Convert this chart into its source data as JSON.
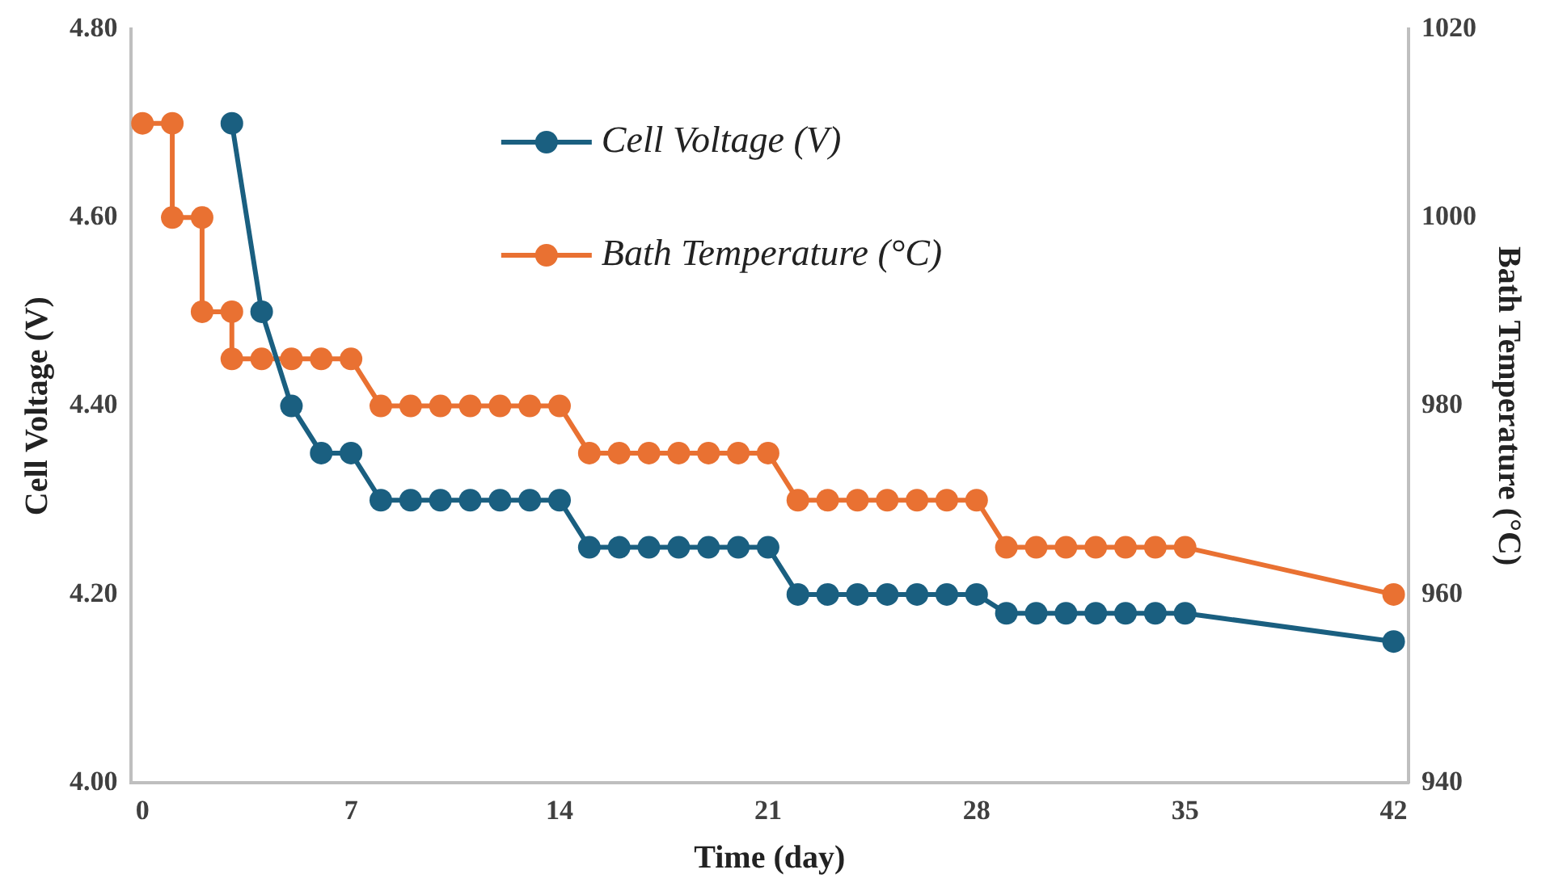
{
  "chart_data": {
    "type": "line",
    "xlabel": "Time (day)",
    "ylabel": "Cell Voltage (V)",
    "y2label": "Bath Temperature (°C)",
    "xlim": [
      -0.4,
      42.5
    ],
    "xticks": [
      0,
      7,
      14,
      21,
      28,
      35,
      42
    ],
    "ylim": [
      4.0,
      4.8
    ],
    "yticks": [
      {
        "value": 4.0,
        "label": "4.00"
      },
      {
        "value": 4.2,
        "label": "4.20"
      },
      {
        "value": 4.4,
        "label": "4.40"
      },
      {
        "value": 4.6,
        "label": "4.60"
      },
      {
        "value": 4.8,
        "label": "4.80"
      }
    ],
    "y2lim": [
      940,
      1020
    ],
    "y2ticks": [
      940,
      960,
      980,
      1000,
      1020
    ],
    "grid": false,
    "legend": "top",
    "marker": "circle",
    "line_style": "solid",
    "series": [
      {
        "name": "Cell Voltage (V)",
        "color": "#1a5f80",
        "x": [
          3,
          4,
          5,
          6,
          7,
          8,
          9,
          10,
          11,
          12,
          13,
          14,
          15,
          16,
          17,
          18,
          19,
          20,
          21,
          22,
          23,
          24,
          25,
          26,
          27,
          28,
          29,
          30,
          31,
          32,
          33,
          34,
          35,
          42
        ],
        "values": [
          4.7,
          4.5,
          4.4,
          4.35,
          4.35,
          4.3,
          4.3,
          4.3,
          4.3,
          4.3,
          4.3,
          4.3,
          4.25,
          4.25,
          4.25,
          4.25,
          4.25,
          4.25,
          4.25,
          4.2,
          4.2,
          4.2,
          4.2,
          4.2,
          4.2,
          4.2,
          4.18,
          4.18,
          4.18,
          4.18,
          4.18,
          4.18,
          4.18,
          4.15
        ]
      },
      {
        "name": "Bath Temperature (°C)",
        "color": "#e97132",
        "axis": "y2",
        "x": [
          0,
          1,
          1,
          2,
          2,
          3,
          3,
          4,
          5,
          6,
          7,
          8,
          9,
          10,
          11,
          12,
          13,
          14,
          15,
          16,
          17,
          18,
          19,
          20,
          21,
          22,
          23,
          24,
          25,
          26,
          27,
          28,
          29,
          30,
          31,
          32,
          33,
          34,
          35,
          42
        ],
        "values": [
          1010,
          1010,
          1000,
          1000,
          990,
          990,
          985,
          985,
          985,
          985,
          985,
          980,
          980,
          980,
          980,
          980,
          980,
          980,
          975,
          975,
          975,
          975,
          975,
          975,
          975,
          970,
          970,
          970,
          970,
          970,
          970,
          970,
          965,
          965,
          965,
          965,
          965,
          965,
          965,
          960
        ]
      }
    ]
  }
}
